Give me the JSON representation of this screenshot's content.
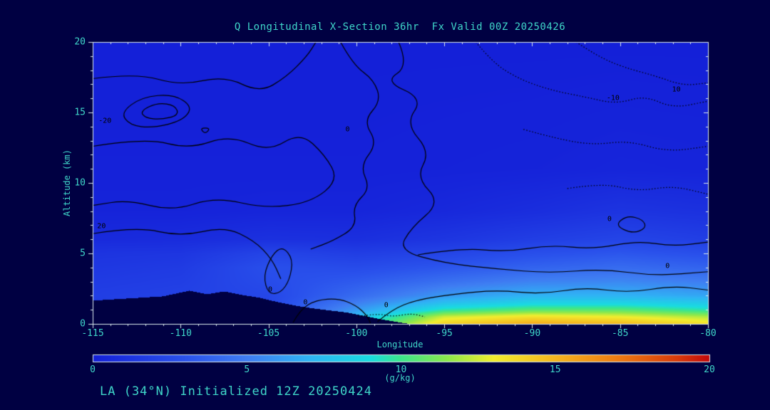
{
  "page": {
    "background": "#000042"
  },
  "header": {
    "title": "Q Longitudinal X-Section 36hr  Fx Valid 00Z 20250426"
  },
  "footer": {
    "caption": "LA (34°N) Initialized 12Z 20250424"
  },
  "chart_data": {
    "type": "heatmap",
    "title": "Q Longitudinal X-Section 36hr  Fx Valid 00Z 20250426",
    "subtitle": "LA (34°N) Initialized 12Z 20250424",
    "xlabel": "Longitude",
    "ylabel": "Altitude (km)",
    "x_range": [
      -115,
      -80
    ],
    "y_range": [
      0,
      20
    ],
    "x_ticks": [
      -115,
      -110,
      -105,
      -100,
      -95,
      -90,
      -85,
      -80
    ],
    "y_ticks": [
      0,
      5,
      10,
      15,
      20
    ],
    "x_minor_step": 1,
    "y_minor_step": 1,
    "grid": false,
    "colors": {
      "background": "#000042",
      "text": "#3fd6c9",
      "frame": "#d9e8ec",
      "contour": "#000000"
    },
    "colorbar": {
      "min": 0,
      "max": 20,
      "ticks": [
        0,
        5,
        10,
        15,
        20
      ],
      "units": "(g/kg)",
      "position": "bottom"
    },
    "colormap_stops": [
      [
        0,
        "#1420d8"
      ],
      [
        3,
        "#2a52ec"
      ],
      [
        5,
        "#3f7df2"
      ],
      [
        7,
        "#2fb4f4"
      ],
      [
        9,
        "#19dce0"
      ],
      [
        10,
        "#3ce68c"
      ],
      [
        11.5,
        "#8ce84c"
      ],
      [
        13,
        "#f2ee2e"
      ],
      [
        15,
        "#f5b61f"
      ],
      [
        17,
        "#ef7d12"
      ],
      [
        19,
        "#d83a0a"
      ],
      [
        20,
        "#c40a0a"
      ]
    ],
    "lons": [
      -115,
      -110,
      -105,
      -100,
      -95,
      -90,
      -85,
      -80
    ],
    "alts": [
      0,
      0.5,
      1,
      1.5,
      2,
      3,
      4,
      5,
      6,
      8,
      11,
      20
    ],
    "q_g_per_kg": [
      [
        2.0,
        2.2,
        2.5,
        8.5,
        14.0,
        15.5,
        15.0,
        13.5
      ],
      [
        2.0,
        2.2,
        2.5,
        7.5,
        12.5,
        13.5,
        13.0,
        12.0
      ],
      [
        1.9,
        2.1,
        2.4,
        6.0,
        9.5,
        10.5,
        10.5,
        9.5
      ],
      [
        1.8,
        2.0,
        2.3,
        5.0,
        7.5,
        8.5,
        8.5,
        8.0
      ],
      [
        1.8,
        2.0,
        2.3,
        4.2,
        6.0,
        7.0,
        7.0,
        6.5
      ],
      [
        1.6,
        1.8,
        2.6,
        3.4,
        4.4,
        5.2,
        5.4,
        5.0
      ],
      [
        1.4,
        1.6,
        2.8,
        2.6,
        3.2,
        3.8,
        4.2,
        3.8
      ],
      [
        1.2,
        1.3,
        2.2,
        1.8,
        2.2,
        2.8,
        3.2,
        2.8
      ],
      [
        0.6,
        0.7,
        1.0,
        0.9,
        1.3,
        1.8,
        2.2,
        1.8
      ],
      [
        0.2,
        0.2,
        0.3,
        0.3,
        0.5,
        0.8,
        1.2,
        1.0
      ],
      [
        0.1,
        0.1,
        0.1,
        0.1,
        0.15,
        0.2,
        0.3,
        0.25
      ],
      [
        0.0,
        0.0,
        0.0,
        0.0,
        0.0,
        0.0,
        0.0,
        0.0
      ]
    ],
    "terrain_km": [
      [
        -115,
        1.65
      ],
      [
        -113,
        1.8
      ],
      [
        -111,
        1.95
      ],
      [
        -109.5,
        2.35
      ],
      [
        -108.5,
        2.1
      ],
      [
        -107.5,
        2.3
      ],
      [
        -106.5,
        2.05
      ],
      [
        -105.5,
        1.85
      ],
      [
        -104.5,
        1.55
      ],
      [
        -103.5,
        1.3
      ],
      [
        -102.5,
        1.1
      ],
      [
        -101.5,
        0.95
      ],
      [
        -100.5,
        0.8
      ],
      [
        -99.5,
        0.55
      ],
      [
        -98.5,
        0.3
      ],
      [
        -97.5,
        0.1
      ],
      [
        -97,
        0
      ],
      [
        -80,
        0
      ]
    ],
    "contour_lines": [
      {
        "style": "solid",
        "label": "0",
        "label_at": [
          -82.3,
          4.1
        ],
        "points": [
          [
            -97.6,
            20
          ],
          [
            -97.0,
            18.3
          ],
          [
            -98.4,
            17.2
          ],
          [
            -96.2,
            16.0
          ],
          [
            -97.2,
            14.2
          ],
          [
            -95.8,
            12.2
          ],
          [
            -96.6,
            10.4
          ],
          [
            -95.2,
            8.6
          ],
          [
            -96.9,
            6.8
          ],
          [
            -97.6,
            5.2
          ],
          [
            -95.0,
            4.3
          ],
          [
            -92.0,
            3.9
          ],
          [
            -89.0,
            3.6
          ],
          [
            -86.0,
            3.9
          ],
          [
            -83.0,
            3.4
          ],
          [
            -80,
            3.7
          ]
        ]
      },
      {
        "style": "solid",
        "points": [
          [
            -115,
            17.4
          ],
          [
            -112.5,
            17.8
          ],
          [
            -110,
            16.9
          ],
          [
            -107.5,
            17.6
          ],
          [
            -105.5,
            16.4
          ],
          [
            -104,
            17.5
          ],
          [
            -102.8,
            19.0
          ],
          [
            -102.3,
            20
          ]
        ]
      },
      {
        "style": "solid",
        "closed": true,
        "label": "-20",
        "label_at": [
          -114.3,
          14.4
        ],
        "points": [
          [
            -113.4,
            15.0
          ],
          [
            -112.2,
            16.1
          ],
          [
            -110.4,
            16.3
          ],
          [
            -109.3,
            15.4
          ],
          [
            -109.9,
            14.4
          ],
          [
            -111.6,
            13.9
          ],
          [
            -112.9,
            14.1
          ]
        ]
      },
      {
        "style": "solid",
        "closed": true,
        "points": [
          [
            -112.3,
            15.1
          ],
          [
            -111.3,
            15.7
          ],
          [
            -110.3,
            15.5
          ],
          [
            -110.1,
            14.8
          ],
          [
            -111.1,
            14.5
          ],
          [
            -112.0,
            14.6
          ]
        ]
      },
      {
        "style": "solid",
        "label": "0",
        "label_at": [
          -100.5,
          13.8
        ],
        "points": [
          [
            -115,
            12.6
          ],
          [
            -112,
            13.2
          ],
          [
            -109.5,
            12.4
          ],
          [
            -107.2,
            13.4
          ],
          [
            -105.0,
            12.2
          ],
          [
            -103.2,
            13.6
          ],
          [
            -101.8,
            12.0
          ],
          [
            -101.0,
            10.2
          ],
          [
            -102.6,
            8.6
          ],
          [
            -105.2,
            8.2
          ],
          [
            -108.0,
            9.0
          ],
          [
            -110.5,
            8.0
          ],
          [
            -113.0,
            8.8
          ],
          [
            -115,
            8.4
          ]
        ]
      },
      {
        "style": "solid",
        "label": "20",
        "label_at": [
          -114.5,
          6.9
        ],
        "points": [
          [
            -115,
            6.4
          ],
          [
            -112.5,
            6.9
          ],
          [
            -110,
            6.2
          ],
          [
            -107.5,
            6.9
          ],
          [
            -105.8,
            5.9
          ],
          [
            -104.8,
            4.6
          ],
          [
            -104.3,
            3.2
          ]
        ]
      },
      {
        "style": "solid",
        "closed": true,
        "label": "0",
        "label_at": [
          -104.9,
          2.4
        ],
        "points": [
          [
            -105.0,
            2.1
          ],
          [
            -105.3,
            3.4
          ],
          [
            -104.8,
            4.9
          ],
          [
            -104.2,
            5.5
          ],
          [
            -103.6,
            4.6
          ],
          [
            -103.8,
            3.1
          ],
          [
            -104.3,
            2.2
          ]
        ]
      },
      {
        "style": "solid",
        "label": "0",
        "label_at": [
          -102.9,
          1.5
        ],
        "points": [
          [
            -103.6,
            0.1
          ],
          [
            -103.2,
            1.0
          ],
          [
            -102.3,
            1.7
          ],
          [
            -101.0,
            1.8
          ],
          [
            -100.0,
            1.3
          ],
          [
            -99.4,
            0.6
          ],
          [
            -99.2,
            0.05
          ]
        ]
      },
      {
        "style": "solid",
        "label": "0",
        "label_at": [
          -98.3,
          1.3
        ],
        "points": [
          [
            -98.8,
            0.15
          ],
          [
            -98.0,
            1.0
          ],
          [
            -96.6,
            1.7
          ],
          [
            -94.5,
            2.1
          ],
          [
            -92.0,
            2.4
          ],
          [
            -89.5,
            2.1
          ],
          [
            -87.0,
            2.6
          ],
          [
            -84.5,
            2.2
          ],
          [
            -82.0,
            2.7
          ],
          [
            -80,
            2.4
          ]
        ]
      },
      {
        "style": "dotted",
        "label": "-10",
        "label_at": [
          -85.4,
          16.0
        ],
        "points": [
          [
            -93.2,
            20
          ],
          [
            -92.3,
            18.6
          ],
          [
            -90.8,
            17.4
          ],
          [
            -89.0,
            16.6
          ],
          [
            -87.0,
            16.1
          ],
          [
            -85.2,
            15.6
          ],
          [
            -83.6,
            16.2
          ],
          [
            -82.0,
            15.3
          ],
          [
            -80,
            15.8
          ]
        ]
      },
      {
        "style": "dotted",
        "label": "10",
        "label_at": [
          -81.8,
          16.6
        ],
        "points": [
          [
            -87.5,
            20
          ],
          [
            -86.3,
            19.0
          ],
          [
            -84.8,
            18.2
          ],
          [
            -83.0,
            17.6
          ],
          [
            -81.4,
            16.9
          ],
          [
            -80,
            17.1
          ]
        ]
      },
      {
        "style": "dotted",
        "points": [
          [
            -90.5,
            13.8
          ],
          [
            -88.5,
            13.1
          ],
          [
            -86.5,
            12.7
          ],
          [
            -84.5,
            13.0
          ],
          [
            -82.3,
            12.2
          ],
          [
            -80,
            12.6
          ]
        ]
      },
      {
        "style": "solid",
        "closed": true,
        "label": "0",
        "label_at": [
          -85.6,
          7.4
        ],
        "points": [
          [
            -85.3,
            7.0
          ],
          [
            -84.6,
            7.7
          ],
          [
            -83.7,
            7.4
          ],
          [
            -83.5,
            6.8
          ],
          [
            -84.3,
            6.4
          ]
        ]
      },
      {
        "style": "solid",
        "closed": true,
        "points": [
          [
            -108.9,
            13.9
          ],
          [
            -108.3,
            13.9
          ],
          [
            -108.6,
            13.45
          ]
        ]
      },
      {
        "style": "dotted",
        "points": [
          [
            -99.9,
            0.5
          ],
          [
            -98.9,
            0.75
          ],
          [
            -97.9,
            0.5
          ],
          [
            -96.9,
            0.75
          ],
          [
            -96.1,
            0.5
          ]
        ]
      },
      {
        "style": "solid",
        "points": [
          [
            -100.9,
            20
          ],
          [
            -100.2,
            18.4
          ],
          [
            -99.0,
            17.3
          ],
          [
            -98.6,
            15.8
          ],
          [
            -99.6,
            14.4
          ],
          [
            -98.8,
            12.8
          ],
          [
            -99.8,
            11.2
          ],
          [
            -99.2,
            9.6
          ],
          [
            -100.2,
            8.4
          ],
          [
            -100.0,
            6.9
          ],
          [
            -101.3,
            5.9
          ],
          [
            -102.6,
            5.3
          ]
        ]
      },
      {
        "style": "dotted",
        "points": [
          [
            -88,
            9.6
          ],
          [
            -86,
            10.0
          ],
          [
            -84,
            9.4
          ],
          [
            -82,
            9.8
          ],
          [
            -80,
            9.2
          ]
        ]
      },
      {
        "style": "solid",
        "points": [
          [
            -96.5,
            4.9
          ],
          [
            -94,
            5.4
          ],
          [
            -91.5,
            5.1
          ],
          [
            -89,
            5.6
          ],
          [
            -86.5,
            5.3
          ],
          [
            -84,
            5.9
          ],
          [
            -82,
            5.5
          ],
          [
            -80,
            5.8
          ]
        ]
      }
    ]
  }
}
